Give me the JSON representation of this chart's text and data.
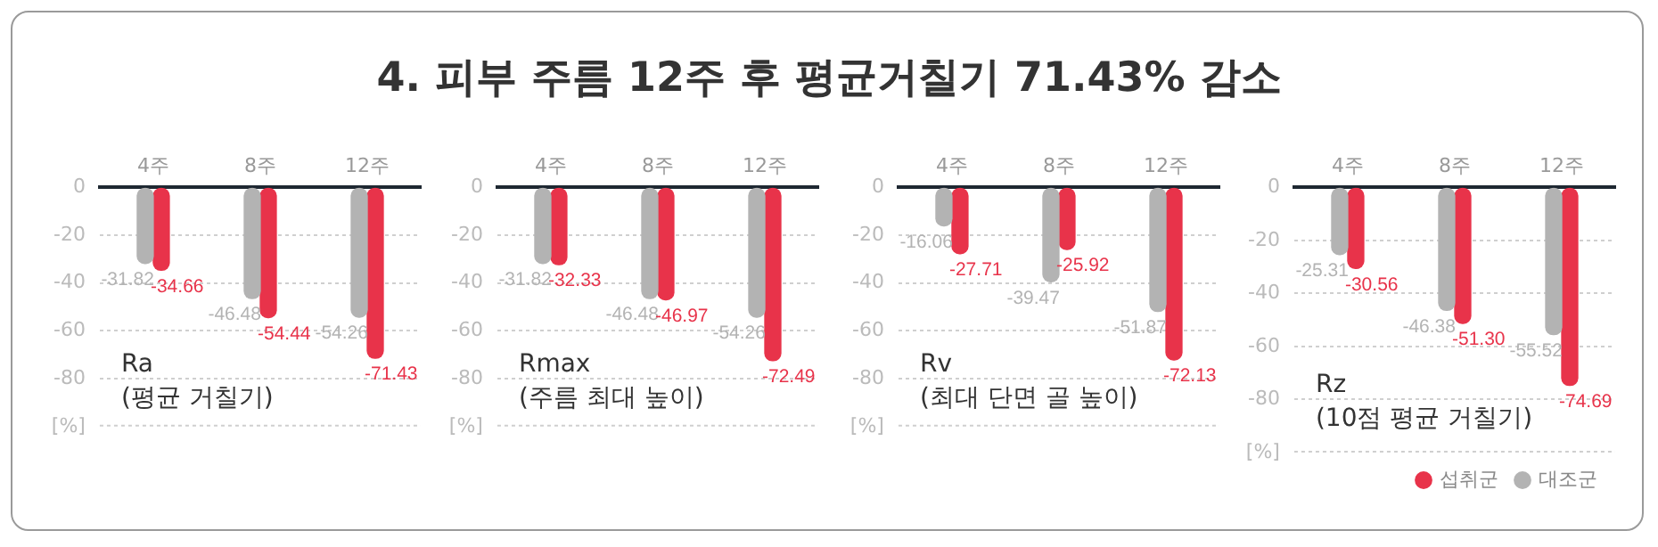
{
  "chart_data": [
    {
      "type": "bar",
      "title": "Ra",
      "subtitle": "(평균 거칠기)",
      "annotations": [
        "4. 피부 주름  12주 후 평균거칠기 71.43% 감소"
      ],
      "categories": [
        "4주",
        "8주",
        "12주"
      ],
      "series": [
        {
          "color": "#b3b3b3",
          "values": [
            -31.82,
            -46.48,
            -54.26
          ],
          "value_labels": [
            "-31.82",
            "-46.48",
            "-54.26"
          ]
        },
        {
          "color": "#e8334a",
          "values": [
            -34.66,
            -54.44,
            -71.43
          ],
          "value_labels": [
            "-34.66",
            "-54.44",
            "-71.43"
          ]
        }
      ],
      "ylim": [
        -100,
        0
      ],
      "yticks": [
        0,
        -20,
        -40,
        -60,
        -80
      ],
      "ylabel": "[%]",
      "grid": "y",
      "legend": false
    },
    {
      "type": "bar",
      "title": "Rmax",
      "subtitle": "(주름 최대 높이)",
      "categories": [
        "4주",
        "8주",
        "12주"
      ],
      "series": [
        {
          "color": "#b3b3b3",
          "values": [
            -31.82,
            -46.48,
            -54.26
          ],
          "value_labels": [
            "-31.82",
            "-46.48",
            "-54.26"
          ]
        },
        {
          "color": "#e8334a",
          "values": [
            -32.33,
            -46.97,
            -72.49
          ],
          "value_labels": [
            "-32.33",
            "-46.97",
            "-72.49"
          ]
        }
      ],
      "ylim": [
        -100,
        0
      ],
      "yticks": [
        0,
        -20,
        -40,
        -60,
        -80
      ],
      "ylabel": "[%]",
      "grid": "y",
      "legend": false
    },
    {
      "type": "bar",
      "title": "Rv",
      "subtitle": "(최대 단면 골 높이)",
      "categories": [
        "4주",
        "8주",
        "12주"
      ],
      "series": [
        {
          "color": "#b3b3b3",
          "values": [
            -16.06,
            -39.47,
            -51.87
          ],
          "value_labels": [
            "-16.06",
            "-39.47",
            "-51.87"
          ]
        },
        {
          "color": "#e8334a",
          "values": [
            -27.71,
            -25.92,
            -72.13
          ],
          "value_labels": [
            "-27.71",
            "-25.92",
            "-72.13"
          ]
        }
      ],
      "ylim": [
        -100,
        0
      ],
      "yticks": [
        0,
        -20,
        -40,
        -60,
        -80
      ],
      "ylabel": "[%]",
      "grid": "y",
      "legend": false
    },
    {
      "type": "bar",
      "title": "Rz",
      "subtitle": "(10점 평균 거칠기)",
      "categories": [
        "4주",
        "8주",
        "12주"
      ],
      "series": [
        {
          "name": "대조군",
          "color": "#b3b3b3",
          "values": [
            -25.31,
            -46.38,
            -55.52
          ],
          "value_labels": [
            "-25.31",
            "-46.38",
            "-55.52"
          ]
        },
        {
          "name": "섭취군",
          "color": "#e8334a",
          "values": [
            -30.56,
            -51.3,
            -74.69
          ],
          "value_labels": [
            "-30.56",
            "-51.30",
            "-74.69"
          ]
        }
      ],
      "ylim": [
        -100,
        0
      ],
      "yticks": [
        0,
        -20,
        -40,
        -60,
        -80
      ],
      "ylabel": "[%]",
      "grid": "y",
      "legend": "bottom right"
    }
  ]
}
